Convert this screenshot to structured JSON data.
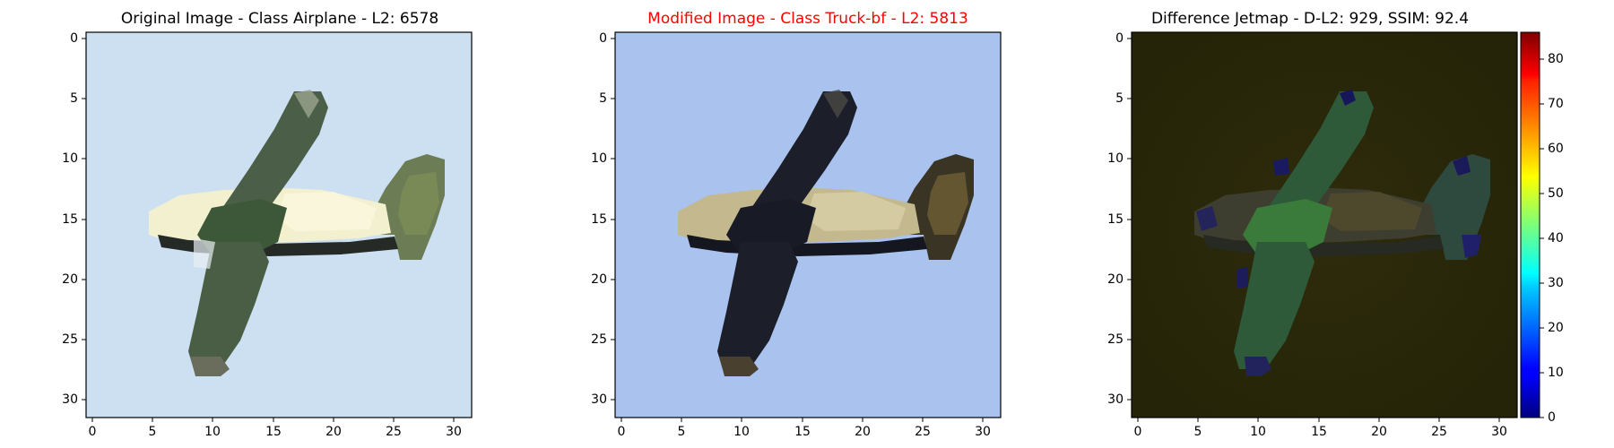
{
  "panels": [
    {
      "id": "original",
      "title": "Original Image - Class Airplane - L2: 6578",
      "title_color": "#000000",
      "background": "#cce0f2",
      "xticks": [
        "0",
        "5",
        "10",
        "15",
        "20",
        "25",
        "30"
      ],
      "yticks": [
        "0",
        "5",
        "10",
        "15",
        "20",
        "25",
        "30"
      ]
    },
    {
      "id": "modified",
      "title": "Modified Image - Class Truck-bf - L2: 5813",
      "title_color": "#ff0000",
      "background": "#a9c2ee",
      "xticks": [
        "0",
        "5",
        "10",
        "15",
        "20",
        "25",
        "30"
      ],
      "yticks": [
        "0",
        "5",
        "10",
        "15",
        "20",
        "25",
        "30"
      ]
    },
    {
      "id": "difference",
      "title": "Difference Jetmap - D-L2: 929, SSIM: 92.4",
      "title_color": "#000000",
      "background": "#2c2a0a",
      "xticks": [
        "0",
        "5",
        "10",
        "15",
        "20",
        "25",
        "30"
      ],
      "yticks": [
        "0",
        "5",
        "10",
        "15",
        "20",
        "25",
        "30"
      ]
    }
  ],
  "colorbar": {
    "ticks": [
      "0",
      "10",
      "20",
      "30",
      "40",
      "50",
      "60",
      "70",
      "80"
    ],
    "min": 0,
    "max": 86,
    "colormap": "jet"
  },
  "colors": {
    "airplane_body_original": "#4a5e45",
    "airplane_wing_original": "#f2f0cf",
    "airplane_body_modified": "#1c1e2a",
    "airplane_wing_modified": "#c4b88e",
    "difference_body": "#2e5a3a"
  }
}
